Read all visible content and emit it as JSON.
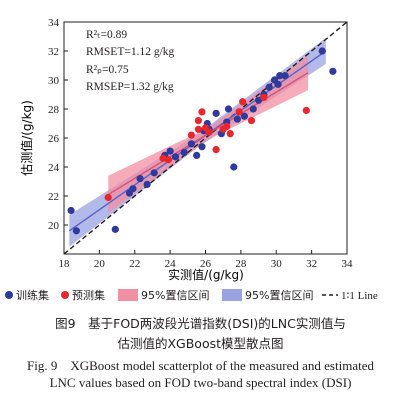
{
  "chart_data": {
    "type": "scatter",
    "xlabel": "实测值/(g/kg)",
    "ylabel": "估测值/(g/kg)",
    "xlim": [
      18,
      34
    ],
    "ylim": [
      18,
      34
    ],
    "xticks": [
      "18",
      "20",
      "22",
      "24",
      "26",
      "28",
      "30",
      "32",
      "34"
    ],
    "yticks": [
      "20",
      "22",
      "24",
      "26",
      "28",
      "30",
      "32",
      "34"
    ],
    "stats": {
      "r2t": "R²ₜ=0.89",
      "rmset": "RMSET=1.12 g/kg",
      "r2p": "R²ₚ=0.75",
      "rmsep": "RMSEP=1.32 g/kg"
    },
    "legend": {
      "train": "训练集",
      "predict": "预测集",
      "ci_red": "95%置信区间",
      "ci_blue": "95%置信区间",
      "line": "1∶1 Line"
    },
    "colors": {
      "train": "#2e3a9c",
      "predict": "#e8262d",
      "ci_red": "#f18fa3",
      "ci_blue": "#9aa2e0",
      "fit_red": "#e05070",
      "fit_blue": "#5a64c8"
    },
    "fit_train": {
      "x": [
        18.3,
        32.8
      ],
      "y": [
        19.6,
        32.0
      ],
      "band_half": [
        1.1,
        0.45,
        0.9
      ]
    },
    "fit_predict": {
      "x": [
        20.5,
        31.8
      ],
      "y": [
        22.1,
        30.5
      ],
      "band_half": [
        1.3,
        0.4,
        1.2
      ]
    },
    "train_points": [
      [
        18.4,
        21.0
      ],
      [
        18.7,
        19.6
      ],
      [
        20.9,
        19.7
      ],
      [
        21.7,
        22.2
      ],
      [
        21.9,
        22.5
      ],
      [
        22.3,
        23.2
      ],
      [
        22.7,
        22.8
      ],
      [
        23.1,
        23.6
      ],
      [
        23.7,
        24.8
      ],
      [
        24.0,
        25.1
      ],
      [
        24.3,
        24.7
      ],
      [
        24.8,
        25.0
      ],
      [
        25.2,
        25.6
      ],
      [
        25.5,
        24.8
      ],
      [
        25.8,
        25.4
      ],
      [
        25.9,
        26.5
      ],
      [
        26.1,
        27.0
      ],
      [
        26.6,
        27.7
      ],
      [
        26.9,
        26.3
      ],
      [
        27.2,
        27.1
      ],
      [
        27.3,
        28.0
      ],
      [
        27.6,
        24.0
      ],
      [
        27.8,
        27.3
      ],
      [
        28.2,
        27.5
      ],
      [
        28.7,
        28.0
      ],
      [
        29.0,
        28.6
      ],
      [
        29.3,
        29.0
      ],
      [
        29.6,
        29.5
      ],
      [
        29.9,
        30.0
      ],
      [
        30.1,
        29.7
      ],
      [
        30.5,
        30.3
      ],
      [
        32.6,
        32.0
      ],
      [
        33.2,
        30.6
      ],
      [
        30.2,
        30.3
      ],
      [
        26.2,
        26.6
      ]
    ],
    "predict_points": [
      [
        20.5,
        21.9
      ],
      [
        23.6,
        24.6
      ],
      [
        23.9,
        24.5
      ],
      [
        25.2,
        26.2
      ],
      [
        25.6,
        26.6
      ],
      [
        25.8,
        27.8
      ],
      [
        26.2,
        26.4
      ],
      [
        26.6,
        25.2
      ],
      [
        27.2,
        26.8
      ],
      [
        27.4,
        26.3
      ],
      [
        27.9,
        27.8
      ],
      [
        28.1,
        28.5
      ],
      [
        28.6,
        27.2
      ],
      [
        29.3,
        28.8
      ],
      [
        31.7,
        27.9
      ],
      [
        25.6,
        27.2
      ],
      [
        26.0,
        26.7
      ],
      [
        27.0,
        26.6
      ]
    ]
  },
  "caption": {
    "cn1": "图9　基于FOD两波段光谱指数(DSI)的LNC实测值与",
    "cn2": "估测值的XGBoost模型散点图",
    "en1": "Fig. 9　XGBoost model scatterplot of the measured and estimated",
    "en2": "LNC values based on FOD two-band spectral index (DSI)"
  }
}
